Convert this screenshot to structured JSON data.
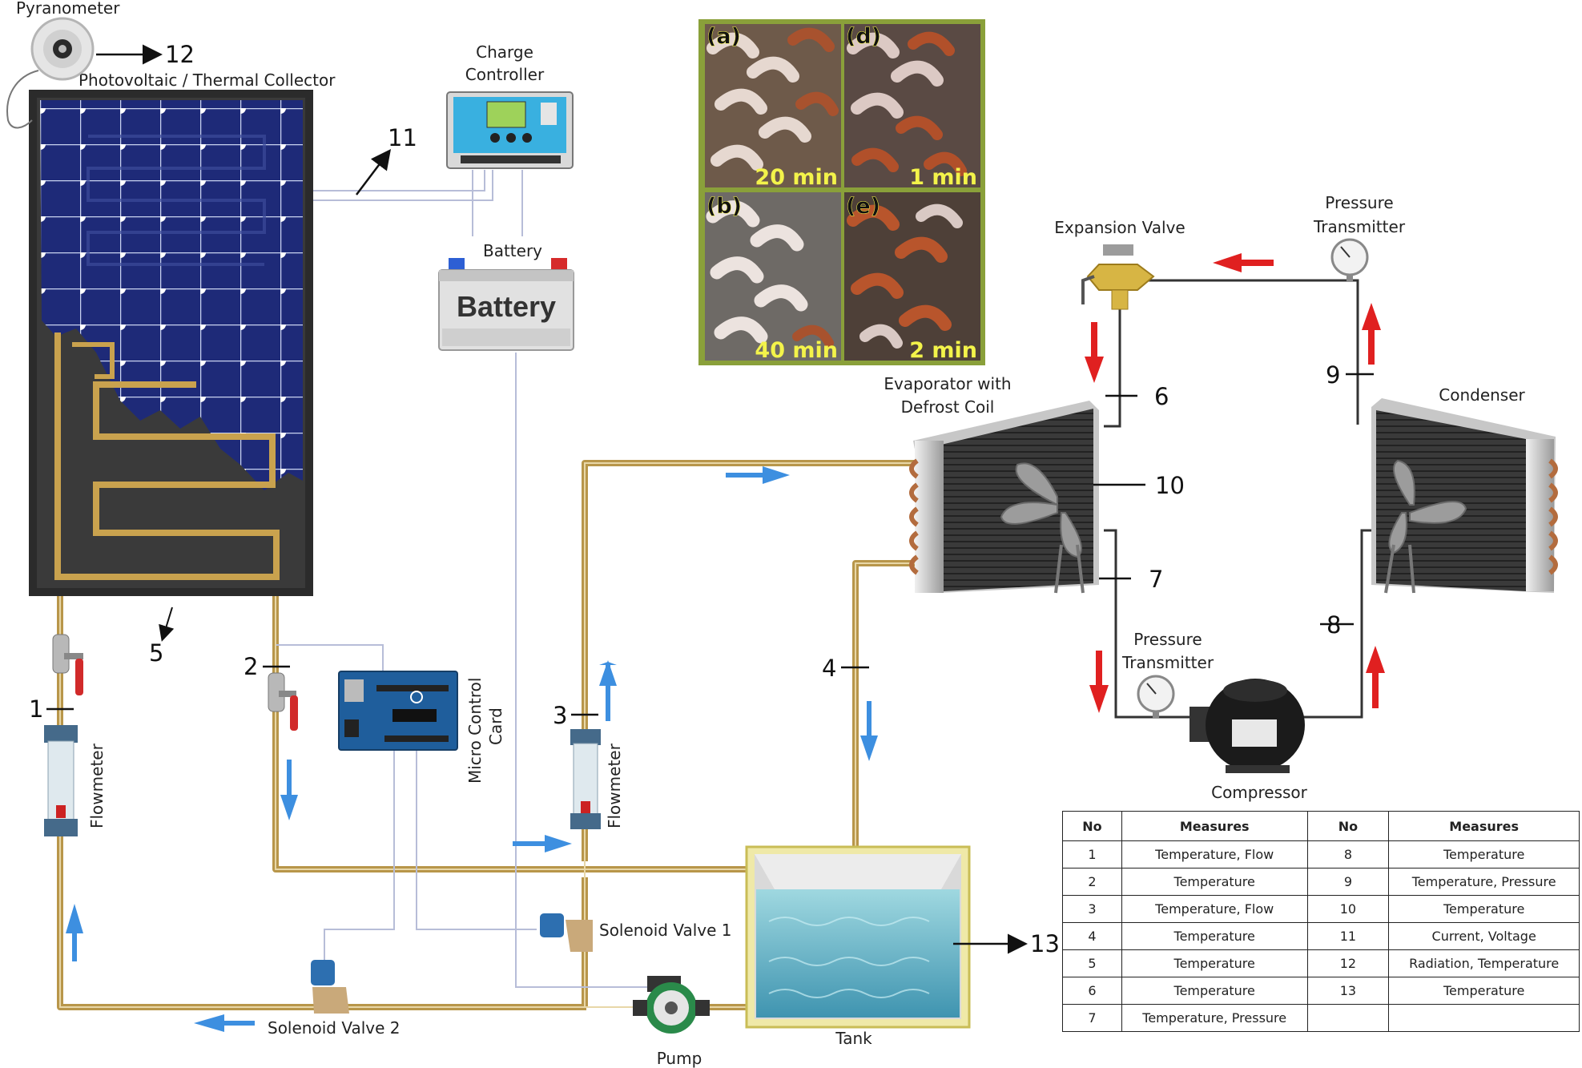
{
  "labels": {
    "pyranometer": "Pyranometer",
    "collector": "Photovoltaic / Thermal Collector",
    "charge_controller_line1": "Charge",
    "charge_controller_line2": "Controller",
    "battery_label": "Battery",
    "battery_text": "Battery",
    "expansion_valve": "Expansion Valve",
    "pressure_transmitter_top_line1": "Pressure",
    "pressure_transmitter_top_line2": "Transmitter",
    "evaporator_line1": "Evaporator with",
    "evaporator_line2": "Defrost Coil",
    "condenser": "Condenser",
    "pressure_transmitter_bottom_line1": "Pressure",
    "pressure_transmitter_bottom_line2": "Transmitter",
    "compressor": "Compressor",
    "micro_control_line1": "Micro Control",
    "micro_control_line2": "Card",
    "flowmeter_left": "Flowmeter",
    "flowmeter_mid": "Flowmeter",
    "solenoid_valve_1": "Solenoid Valve 1",
    "solenoid_valve_2": "Solenoid Valve 2",
    "pump": "Pump",
    "tank": "Tank"
  },
  "points": {
    "p1": "1",
    "p2": "2",
    "p3": "3",
    "p4": "4",
    "p5": "5",
    "p6": "6",
    "p7": "7",
    "p8": "8",
    "p9": "9",
    "p10": "10",
    "p11": "11",
    "p12": "12",
    "p13": "13"
  },
  "photos": [
    {
      "label": "(a)",
      "time": "20 min"
    },
    {
      "label": "(d)",
      "time": "1 min"
    },
    {
      "label": "(b)",
      "time": "40 min"
    },
    {
      "label": "(e)",
      "time": "2 min"
    }
  ],
  "table": {
    "headers": [
      "No",
      "Measures",
      "No",
      "Measures"
    ],
    "rows": [
      [
        "1",
        "Temperature, Flow",
        "8",
        "Temperature"
      ],
      [
        "2",
        "Temperature",
        "9",
        "Temperature, Pressure"
      ],
      [
        "3",
        "Temperature, Flow",
        "10",
        "Temperature"
      ],
      [
        "4",
        "Temperature",
        "11",
        "Current, Voltage"
      ],
      [
        "5",
        "Temperature",
        "12",
        "Radiation, Temperature"
      ],
      [
        "6",
        "Temperature",
        "13",
        "Temperature"
      ],
      [
        "7",
        "Temperature, Pressure",
        "",
        ""
      ]
    ]
  },
  "colors": {
    "water_pipe": "#b8964a",
    "refrigerant_line": "#333333",
    "flow_arrow_water": "#3d8fe0",
    "flow_arrow_refrigerant": "#e02020",
    "panel_blue": "#1e2a78",
    "photo_frame": "#8aa03a"
  }
}
